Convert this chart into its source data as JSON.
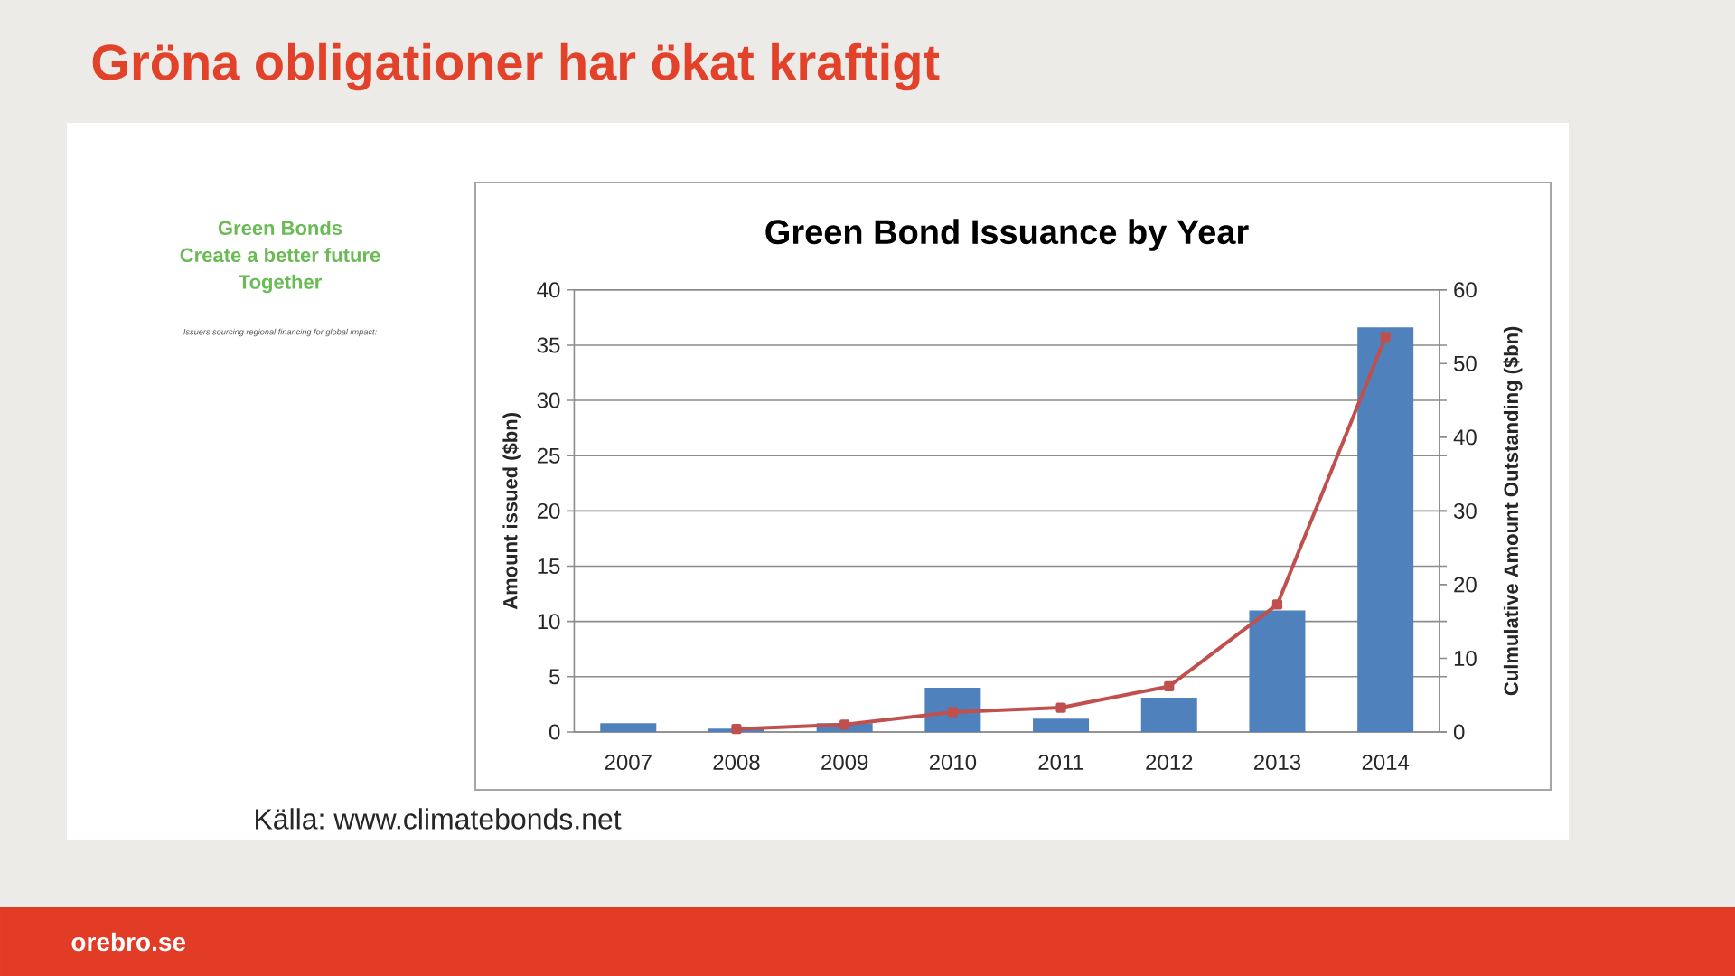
{
  "chart_data": {
    "type": "bar",
    "title": "Gröna obligationer har ökat kraftigt",
    "subtitle": "Green Bond Issuance by Year",
    "categories": [
      "2007",
      "2008",
      "2009",
      "2010",
      "2011",
      "2012",
      "2013",
      "2014"
    ],
    "series": [
      {
        "color": "#4f81bd",
        "values": [
          0.8,
          0.3,
          0.8,
          4.0,
          1.2,
          3.1,
          11.0,
          36.6
        ]
      },
      {
        "type": "line",
        "axis": "y2",
        "color": "#c0504d",
        "values": [
          null,
          0.4,
          1.0,
          2.7,
          3.3,
          6.2,
          17.3,
          53.6
        ]
      }
    ],
    "ylabel": "Amount issued ($bn)",
    "y2label": "Culmulative Amount Outstanding ($bn)",
    "ylim": [
      0,
      40
    ],
    "yticks": [
      0,
      5,
      10,
      15,
      20,
      25,
      30,
      35,
      40
    ],
    "y2lim": [
      0,
      60
    ],
    "y2ticks": [
      0,
      10,
      20,
      30,
      40,
      50,
      60
    ],
    "grid": "y",
    "marker": "square",
    "annotations": [
      "Green Bonds",
      "Create a better future",
      "Together",
      "Issuers sourcing regional financing for global impact:",
      "Källa: www.climatebonds.net",
      "orebro.se"
    ]
  }
}
